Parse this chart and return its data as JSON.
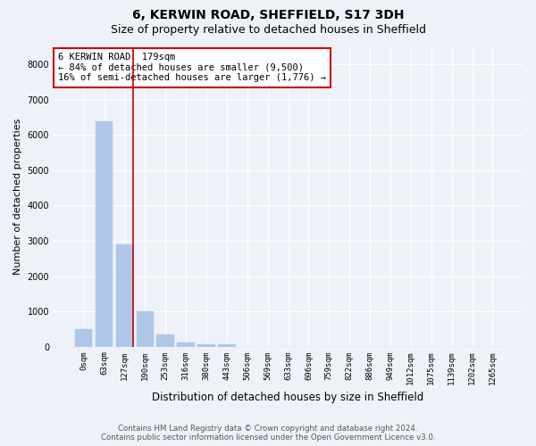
{
  "title": "6, KERWIN ROAD, SHEFFIELD, S17 3DH",
  "subtitle": "Size of property relative to detached houses in Sheffield",
  "xlabel": "Distribution of detached houses by size in Sheffield",
  "ylabel": "Number of detached properties",
  "categories": [
    "0sqm",
    "63sqm",
    "127sqm",
    "190sqm",
    "253sqm",
    "316sqm",
    "380sqm",
    "443sqm",
    "506sqm",
    "569sqm",
    "633sqm",
    "696sqm",
    "759sqm",
    "822sqm",
    "886sqm",
    "949sqm",
    "1012sqm",
    "1075sqm",
    "1139sqm",
    "1202sqm",
    "1265sqm"
  ],
  "values": [
    500,
    6400,
    2900,
    1000,
    350,
    130,
    80,
    60,
    0,
    0,
    0,
    0,
    0,
    0,
    0,
    0,
    0,
    0,
    0,
    0,
    0
  ],
  "bar_color": "#aec6e8",
  "bar_edge_color": "#aec6e8",
  "vline_color": "#cc0000",
  "annotation_text": "6 KERWIN ROAD: 179sqm\n← 84% of detached houses are smaller (9,500)\n16% of semi-detached houses are larger (1,776) →",
  "annotation_box_color": "#ffffff",
  "annotation_box_edge_color": "#cc0000",
  "ylim": [
    0,
    8500
  ],
  "yticks": [
    0,
    1000,
    2000,
    3000,
    4000,
    5000,
    6000,
    7000,
    8000
  ],
  "footnote": "Contains HM Land Registry data © Crown copyright and database right 2024.\nContains public sector information licensed under the Open Government Licence v3.0.",
  "background_color": "#eef2f8",
  "grid_color": "#ffffff",
  "title_fontsize": 10,
  "subtitle_fontsize": 9,
  "annotation_fontsize": 7.5,
  "tick_fontsize": 6.5,
  "ylabel_fontsize": 8,
  "xlabel_fontsize": 8.5,
  "footnote_fontsize": 6.2
}
